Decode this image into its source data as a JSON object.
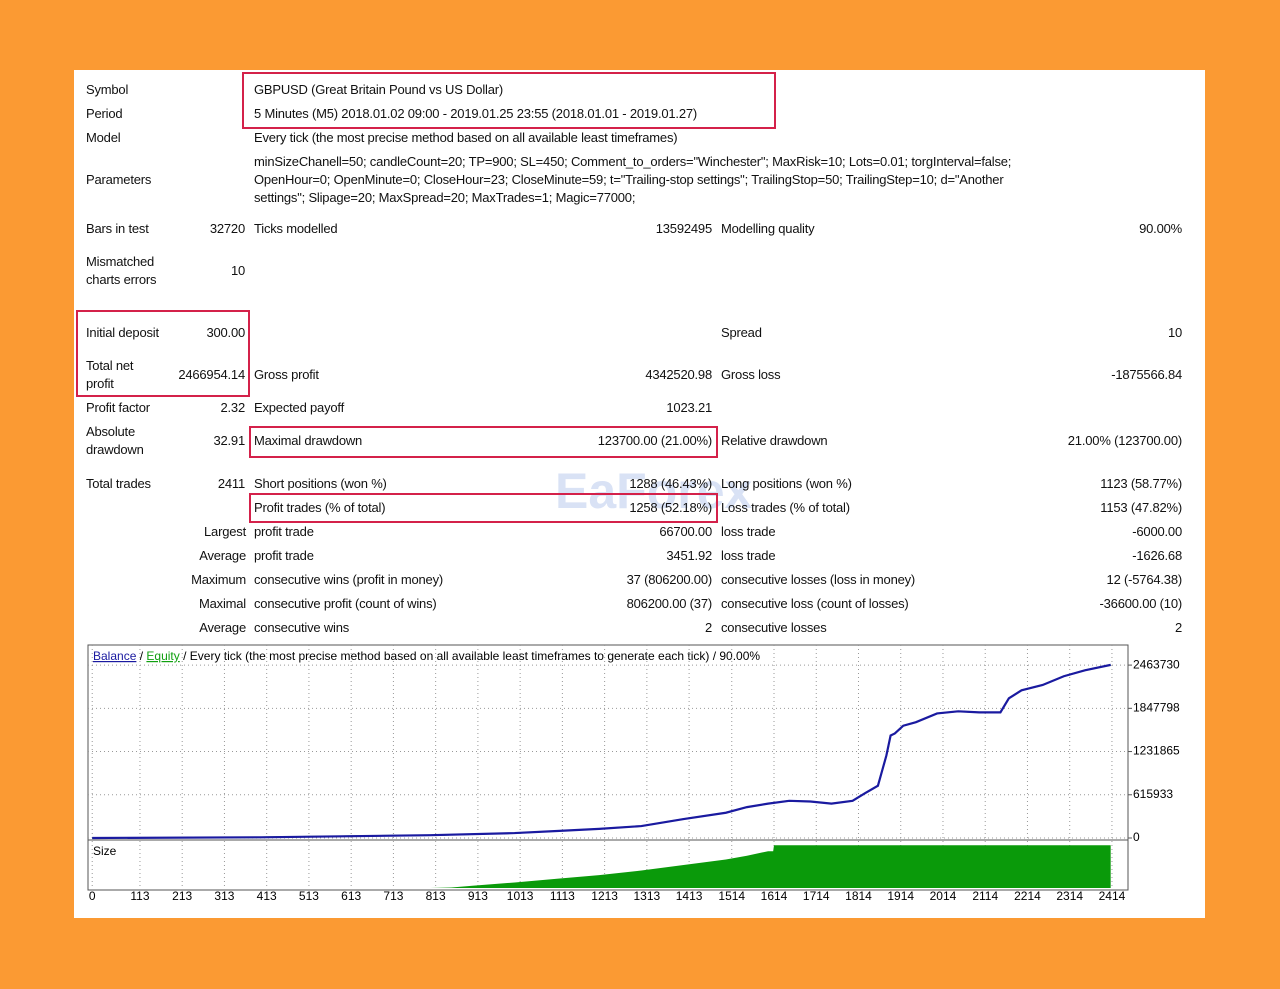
{
  "report": {
    "rows": [
      {
        "label": "Symbol",
        "value": "GBPUSD (Great Britain Pound vs US Dollar)"
      },
      {
        "label": "Period",
        "value": "5 Minutes (M5) 2018.01.02 09:00 - 2019.01.25 23:55 (2018.01.01 - 2019.01.27)"
      },
      {
        "label": "Model",
        "value": "Every tick (the most precise method based on all available least timeframes)"
      },
      {
        "label": "Parameters",
        "lines": [
          "minSizeChanell=50; candleCount=20; TP=900; SL=450; Comment_to_orders=\"Winchester\"; MaxRisk=10; Lots=0.01; torgInterval=false;",
          "OpenHour=0; OpenMinute=0; CloseHour=23; CloseMinute=59; t=\"Trailing-stop settings\"; TrailingStop=50; TrailingStep=10; d=\"Another",
          "settings\"; Slipage=20; MaxSpread=20; MaxTrades=1; Magic=77000;"
        ]
      },
      {
        "label": "Bars in test",
        "value": "32720",
        "label2": "Ticks modelled",
        "value2": "13592495",
        "label3": "Modelling quality",
        "value3": "90.00%"
      },
      {
        "label": "Mismatched charts errors",
        "value": "10"
      },
      {
        "label": "Initial deposit",
        "value": "300.00",
        "label3": "Spread",
        "value3": "10"
      },
      {
        "label": "Total net profit",
        "value": "2466954.14",
        "label2": "Gross profit",
        "value2": "4342520.98",
        "label3": "Gross loss",
        "value3": "-1875566.84"
      },
      {
        "label": "Profit factor",
        "value": "2.32",
        "label2": "Expected payoff",
        "value2": "1023.21"
      },
      {
        "label": "Absolute drawdown",
        "value": "32.91",
        "label2": "Maximal drawdown",
        "value2": "123700.00 (21.00%)",
        "label3": "Relative drawdown",
        "value3": "21.00% (123700.00)"
      },
      {
        "label": "Total trades",
        "value": "2411",
        "label2": "Short positions (won %)",
        "value2": "1288 (46.43%)",
        "label3": "Long positions (won %)",
        "value3": "1123 (58.77%)"
      },
      {
        "label2": "Profit trades (% of total)",
        "value2": "1258 (52.18%)",
        "label3": "Loss trades (% of total)",
        "value3": "1153 (47.82%)"
      },
      {
        "group": "Largest",
        "label2": "profit trade",
        "value2": "66700.00",
        "label3": "loss trade",
        "value3": "-6000.00"
      },
      {
        "group": "Average",
        "label2": "profit trade",
        "value2": "3451.92",
        "label3": "loss trade",
        "value3": "-1626.68"
      },
      {
        "group": "Maximum",
        "label2": "consecutive wins (profit in money)",
        "value2": "37 (806200.00)",
        "label3": "consecutive losses (loss in money)",
        "value3": "12 (-5764.38)"
      },
      {
        "group": "Maximal",
        "label2": "consecutive profit (count of wins)",
        "value2": "806200.00 (37)",
        "label3": "consecutive loss (count of losses)",
        "value3": "-36600.00 (10)"
      },
      {
        "group": "Average",
        "label2": "consecutive wins",
        "value2": "2",
        "label3": "consecutive losses",
        "value3": "2"
      }
    ]
  },
  "watermark": "EaForex",
  "chart_data": {
    "type": "line",
    "subtitle": "Every tick (the most precise method based on all available least timeframes to generate each tick) / 90.00%",
    "separator": "/",
    "x": [
      0,
      400,
      800,
      1000,
      1100,
      1200,
      1300,
      1400,
      1500,
      1550,
      1600,
      1650,
      1700,
      1750,
      1800,
      1830,
      1860,
      1870,
      1880,
      1890,
      1900,
      1920,
      1950,
      2000,
      2050,
      2100,
      2150,
      2170,
      2200,
      2250,
      2300,
      2350,
      2411
    ],
    "series": [
      {
        "name": "Balance",
        "color": "#1a1aa0",
        "values": [
          300,
          10000,
          40000,
          70000,
          100000,
          130000,
          170000,
          270000,
          360000,
          440000,
          490000,
          530000,
          520000,
          490000,
          530000,
          640000,
          745000,
          960000,
          1175000,
          1460000,
          1490000,
          1600000,
          1650000,
          1775000,
          1805000,
          1790000,
          1790000,
          1990000,
          2105000,
          2180000,
          2305000,
          2390000,
          2467000
        ]
      },
      {
        "name": "Equity",
        "color": "#10a010",
        "values": [
          300,
          10000,
          40000,
          70000,
          100000,
          130000,
          170000,
          270000,
          360000,
          440000,
          490000,
          530000,
          520000,
          490000,
          530000,
          640000,
          745000,
          960000,
          1175000,
          1460000,
          1490000,
          1600000,
          1650000,
          1775000,
          1805000,
          1790000,
          1790000,
          1990000,
          2105000,
          2180000,
          2305000,
          2390000,
          2467000
        ]
      }
    ],
    "xlim": [
      -10,
      2452
    ],
    "ylim": [
      0,
      2750000
    ],
    "xticks": [
      0,
      113,
      213,
      313,
      413,
      513,
      613,
      713,
      813,
      913,
      1013,
      1113,
      1213,
      1313,
      1413,
      1514,
      1614,
      1714,
      1814,
      1914,
      2014,
      2114,
      2214,
      2314,
      2414
    ],
    "yticks": [
      0,
      615933,
      1231865,
      1847798,
      2463730
    ],
    "grid": true,
    "size_panel": {
      "label": "Size",
      "color": "#0a9a0a",
      "ylim": [
        0,
        100
      ],
      "x": [
        800,
        850,
        900,
        1000,
        1100,
        1200,
        1300,
        1400,
        1500,
        1550,
        1600,
        1612,
        1614,
        2411
      ],
      "values": [
        0,
        1,
        5,
        12,
        20,
        28,
        38,
        50,
        62,
        70,
        80,
        80,
        93,
        93
      ]
    }
  }
}
